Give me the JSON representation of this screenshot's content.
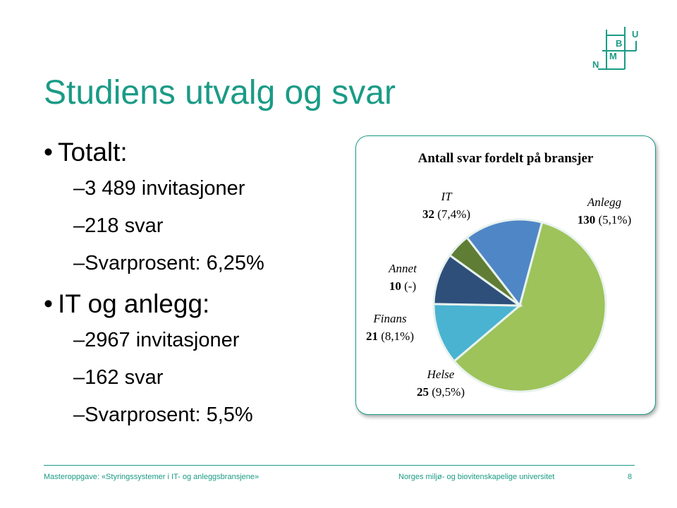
{
  "slide": {
    "title": "Studiens utvalg og svar"
  },
  "logo": {
    "letters": [
      "N",
      "M",
      "B",
      "U"
    ]
  },
  "bullets": [
    {
      "label": "Totalt:",
      "subitems": [
        "–3 489 invitasjoner",
        "–218 svar",
        "–Svarprosent: 6,25%"
      ]
    },
    {
      "label": "IT og anlegg:",
      "subitems": [
        "–2967 invitasjoner",
        "–162 svar",
        "–Svarprosent: 5,5%"
      ]
    }
  ],
  "chart_data": {
    "type": "pie",
    "title": "Antall svar fordelt på bransjer",
    "slices": [
      {
        "name": "Anlegg",
        "value": 130,
        "pct_label": "(5,1%)",
        "color": "#9dc35a"
      },
      {
        "name": "Helse",
        "value": 25,
        "pct_label": "(9,5%)",
        "color": "#4ab3d1"
      },
      {
        "name": "Finans",
        "value": 21,
        "pct_label": "(8,1%)",
        "color": "#2f4f7b"
      },
      {
        "name": "Annet",
        "value": 10,
        "pct_label": "(-)",
        "color": "#5f7d34"
      },
      {
        "name": "IT",
        "value": 32,
        "pct_label": "(7,4%)",
        "color": "#4f86c6"
      }
    ]
  },
  "footer": {
    "left": "Masteroppgave:  «Styringssystemer i IT- og anleggsbransjene»",
    "middle": "Norges miljø- og biovitenskapelige universitet",
    "page": "8"
  },
  "colors": {
    "accent": "#1a9b86"
  }
}
